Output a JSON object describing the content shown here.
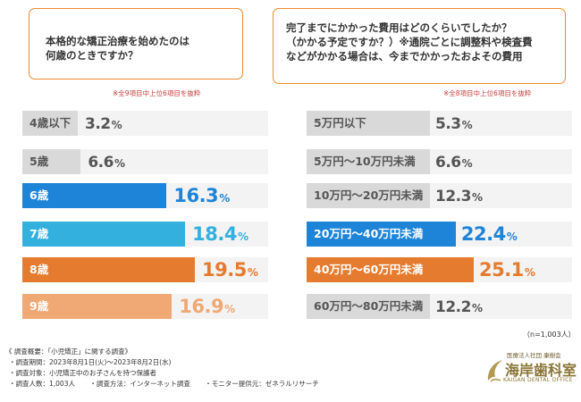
{
  "left_question": {
    "lines": [
      "本格的な矯正治療を始めたのは",
      "何歳のときですか？"
    ],
    "note": "※全9項目中上位6項目を抜粋"
  },
  "right_question": {
    "lines": [
      "完了までにかかった費用はどのくらいでしたか？",
      "（かかる予定ですか？）※通院ごとに調整料や検査費",
      "などがかかる場合は、今までかかったおよその費用"
    ],
    "note": "※全8項目中上位6項目を抜粋"
  },
  "chart_data": [
    {
      "type": "bar",
      "orientation": "horizontal",
      "title": "本格的な矯正治療を始めたのは何歳のときですか？",
      "categories": [
        "4歳以下",
        "5歳",
        "6歳",
        "7歳",
        "8歳",
        "9歳"
      ],
      "values": [
        3.2,
        6.6,
        16.3,
        18.4,
        19.5,
        16.9
      ],
      "value_labels": [
        "3.2",
        "6.6",
        "16.3",
        "18.4",
        "19.5",
        "16.9"
      ],
      "unit": "%",
      "colors": [
        "#d9d9d9",
        "#d9d9d9",
        "#1d84d8",
        "#34b0df",
        "#e57b2e",
        "#f0a874"
      ]
    },
    {
      "type": "bar",
      "orientation": "horizontal",
      "title": "完了までにかかった費用はどのくらいでしたか？",
      "categories": [
        "5万円以下",
        "5万円～10万円未満",
        "10万円～20万円未満",
        "20万円～40万円未満",
        "40万円～60万円未満",
        "60万円～80万円未満"
      ],
      "values": [
        5.3,
        6.6,
        12.3,
        22.4,
        25.1,
        12.2
      ],
      "value_labels": [
        "5.3",
        "6.6",
        "12.3",
        "22.4",
        "25.1",
        "12.2"
      ],
      "unit": "%",
      "colors": [
        "#d9d9d9",
        "#d9d9d9",
        "#d9d9d9",
        "#1d84d8",
        "#e57b2e",
        "#d9d9d9"
      ],
      "n_label": "（n=1,003人）"
    }
  ],
  "survey": {
    "title": "《 調査概要：「小児矯正」に関する調査》",
    "period": "・調査期間：2023年8月1日(火)～2023年8月2日(水)",
    "target": "・調査対象：小児矯正中のお子さんを持つ保護者",
    "count": "・調査人数：1,003人",
    "method": "・調査方法：インターネット調査",
    "provider": "・モニター提供元：ゼネラルリサーチ"
  },
  "logo": {
    "org": "医療法人社団 康樹会",
    "name": "海岸歯科室",
    "en": "KAIGAN DENTAL OFFICE"
  }
}
